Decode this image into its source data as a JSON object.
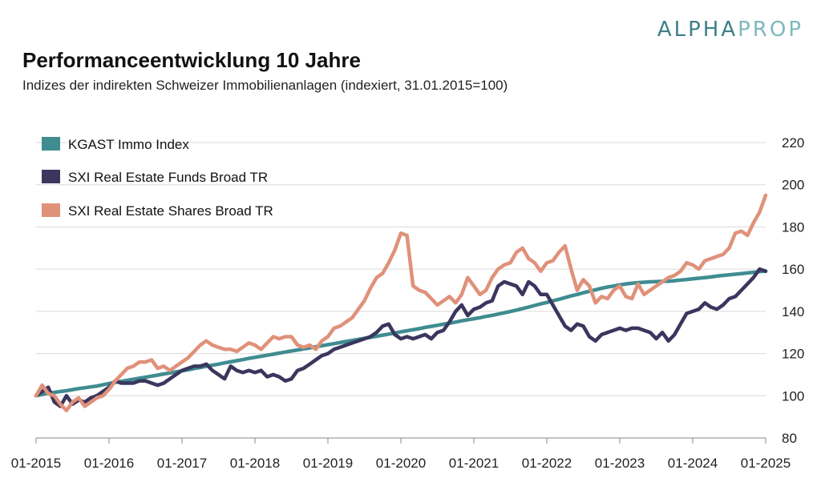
{
  "logo": {
    "part1": "ALPHA",
    "part2": "PROP"
  },
  "header": {
    "title": "Performanceentwicklung 10 Jahre",
    "subtitle": "Indizes der indirekten Schweizer Immobilienanlagen (indexiert, 31.01.2015=100)"
  },
  "colors": {
    "kgast": "#3f8c91",
    "funds": "#3a365e",
    "shares": "#e0917a",
    "grid": "#d9d9d9"
  },
  "chart_data": {
    "type": "line",
    "title": "Performanceentwicklung 10 Jahre",
    "xlabel": "",
    "ylabel": "",
    "ylim": [
      80,
      220
    ],
    "yticks": [
      80,
      100,
      120,
      140,
      160,
      180,
      200,
      220
    ],
    "xlim": [
      0,
      120
    ],
    "xtick_positions": [
      0,
      12,
      24,
      36,
      48,
      60,
      72,
      84,
      96,
      108,
      120
    ],
    "xtick_labels": [
      "01-2015",
      "01-2016",
      "01-2017",
      "01-2018",
      "01-2019",
      "01-2020",
      "01-2021",
      "01-2022",
      "01-2023",
      "01-2024",
      "01-2025"
    ],
    "x": [
      0,
      1,
      2,
      3,
      4,
      5,
      6,
      7,
      8,
      9,
      10,
      11,
      12,
      13,
      14,
      15,
      16,
      17,
      18,
      19,
      20,
      21,
      22,
      23,
      24,
      25,
      26,
      27,
      28,
      29,
      30,
      31,
      32,
      33,
      34,
      35,
      36,
      37,
      38,
      39,
      40,
      41,
      42,
      43,
      44,
      45,
      46,
      47,
      48,
      49,
      50,
      51,
      52,
      53,
      54,
      55,
      56,
      57,
      58,
      59,
      60,
      61,
      62,
      63,
      64,
      65,
      66,
      67,
      68,
      69,
      70,
      71,
      72,
      73,
      74,
      75,
      76,
      77,
      78,
      79,
      80,
      81,
      82,
      83,
      84,
      85,
      86,
      87,
      88,
      89,
      90,
      91,
      92,
      93,
      94,
      95,
      96,
      97,
      98,
      99,
      100,
      101,
      102,
      103,
      104,
      105,
      106,
      107,
      108,
      109,
      110,
      111,
      112,
      113,
      114,
      115,
      116,
      117,
      118,
      119,
      120
    ],
    "grid": true,
    "legend_position": "top-left",
    "series": [
      {
        "name": "KGAST Immo Index",
        "color": "#3f8c91",
        "values": [
          100,
          100.6,
          101.2,
          101.6,
          102.0,
          102.4,
          102.9,
          103.4,
          103.8,
          104.2,
          104.6,
          105.2,
          105.8,
          106.3,
          106.8,
          107.3,
          107.8,
          108.3,
          108.8,
          109.3,
          109.8,
          110.3,
          110.8,
          111.3,
          111.8,
          112.3,
          112.9,
          113.4,
          114.0,
          114.5,
          115.0,
          115.6,
          116.1,
          116.6,
          117.1,
          117.7,
          118.2,
          118.7,
          119.2,
          119.7,
          120.2,
          120.7,
          121.2,
          121.7,
          122.2,
          122.7,
          123.2,
          123.7,
          124.2,
          124.7,
          125.2,
          125.7,
          126.2,
          126.7,
          127.2,
          127.7,
          128.2,
          128.7,
          129.2,
          129.7,
          130.3,
          130.8,
          131.3,
          131.8,
          132.4,
          132.9,
          133.4,
          133.9,
          134.4,
          134.9,
          135.5,
          136.0,
          136.5,
          137.0,
          137.6,
          138.1,
          138.7,
          139.3,
          139.9,
          140.6,
          141.3,
          142.0,
          142.8,
          143.5,
          144.2,
          145.0,
          145.7,
          146.5,
          147.3,
          148.0,
          148.8,
          149.5,
          150.2,
          150.9,
          151.5,
          152.0,
          152.5,
          153.0,
          153.3,
          153.6,
          153.8,
          154.0,
          154.1,
          154.2,
          154.3,
          154.5,
          154.8,
          155.1,
          155.4,
          155.7,
          156.0,
          156.3,
          156.7,
          157.0,
          157.3,
          157.6,
          157.9,
          158.2,
          158.5,
          158.8,
          159.1
        ]
      },
      {
        "name": "SXI Real Estate Funds Broad TR",
        "color": "#3a365e",
        "values": [
          100,
          102,
          104,
          97,
          95,
          100,
          96,
          98,
          97,
          99,
          100,
          102,
          104,
          107,
          106,
          106,
          106,
          107,
          107,
          106,
          105,
          106,
          108,
          110,
          112,
          113,
          114,
          114,
          115,
          112,
          110,
          108,
          114,
          112,
          111,
          112,
          111,
          112,
          109,
          110,
          109,
          107,
          108,
          112,
          113,
          115,
          117,
          119,
          120,
          122,
          123,
          124,
          125,
          126,
          127,
          128,
          130,
          133,
          134,
          129,
          127,
          128,
          127,
          128,
          129,
          127,
          130,
          131,
          135,
          140,
          143,
          138,
          141,
          142,
          144,
          145,
          152,
          154,
          153,
          152,
          148,
          154,
          152,
          148,
          148,
          143,
          138,
          133,
          131,
          134,
          133,
          128,
          126,
          129,
          130,
          131,
          132,
          131,
          132,
          132,
          131,
          130,
          127,
          130,
          126,
          129,
          134,
          139,
          140,
          141,
          144,
          142,
          141,
          143,
          146,
          147,
          150,
          153,
          156,
          160,
          159
        ]
      },
      {
        "name": "SXI Real Estate Shares Broad TR",
        "color": "#e0917a",
        "values": [
          100,
          105,
          101,
          100,
          96,
          93,
          97,
          99,
          95,
          97,
          99,
          100,
          103,
          107,
          110,
          113,
          114,
          116,
          116,
          117,
          113,
          114,
          112,
          114,
          116,
          118,
          121,
          124,
          126,
          124,
          123,
          122,
          122,
          121,
          123,
          125,
          124,
          122,
          125,
          128,
          127,
          128,
          128,
          124,
          123,
          124,
          122,
          126,
          128,
          132,
          133,
          135,
          137,
          141,
          145,
          151,
          156,
          158,
          163,
          169,
          177,
          176,
          152,
          150,
          149,
          146,
          143,
          145,
          147,
          144,
          148,
          156,
          152,
          148,
          150,
          156,
          160,
          162,
          163,
          168,
          170,
          165,
          163,
          159,
          163,
          164,
          168,
          171,
          160,
          150,
          155,
          152,
          144,
          147,
          146,
          150,
          152,
          147,
          146,
          153,
          148,
          150,
          152,
          154,
          156,
          157,
          159,
          163,
          162,
          160,
          164,
          165,
          166,
          167,
          170,
          177,
          178,
          176,
          182,
          187,
          195
        ]
      }
    ]
  }
}
